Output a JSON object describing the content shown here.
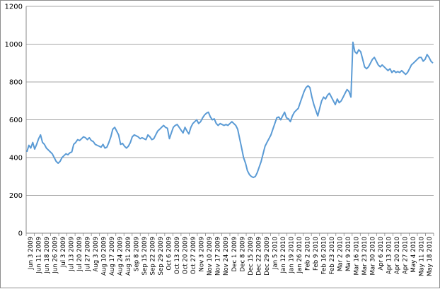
{
  "colors": {
    "line": "#5b9bd5",
    "grid": "#888888",
    "axis": "#888888"
  },
  "chart_data": {
    "type": "line",
    "title": "",
    "xlabel": "",
    "ylabel": "",
    "ylim": [
      0,
      1200
    ],
    "yticks": [
      "0",
      "200",
      "400",
      "600",
      "800",
      "1000",
      "1200"
    ],
    "grid": "horizontal",
    "legend": "none",
    "x_tick_labels": [
      "Jun 3 2009",
      "Jun 11 2009",
      "Jun 18 2009",
      "Jun 26 2009",
      "Jul 3 2009",
      "Jul 13 2009",
      "Jul 20 2009",
      "Jul 27 2009",
      "Aug 3 2009",
      "Aug 10 2009",
      "Aug 17 2009",
      "Aug 24 2009",
      "Aug 31 2009",
      "Sep 8 2009",
      "Sep 15 2009",
      "Sep 22 2009",
      "Sep 29 2009",
      "Oct 6 2009",
      "Oct 13 2009",
      "Oct 20 2009",
      "Oct 27 2009",
      "Nov 3 2009",
      "Nov 10 2009",
      "Nov 17 2009",
      "Nov 24 2009",
      "Dec 1 2009",
      "Dec 8 2009",
      "Dec 15 2009",
      "Dec 22 2009",
      "Dec 29 2009",
      "Jan 5 2010",
      "Jan 12 2010",
      "Jan 19 2010",
      "Jan 26 2010",
      "Feb 2 2010",
      "Feb 9 2010",
      "Feb 16 2010",
      "Feb 23 2010",
      "Mar 2 2010",
      "Mar 9 2010",
      "Mar 16 2010",
      "Mar 23 2010",
      "Mar 30 2010",
      "Apr 6 2010",
      "Apr 13 2010",
      "Apr 20 2010",
      "Apr 27 2010",
      "May 4 2010",
      "May 11 2010",
      "May 18 2010"
    ],
    "series": [
      {
        "values": [
          430,
          465,
          450,
          480,
          445,
          470,
          500,
          520,
          480,
          470,
          450,
          440,
          430,
          420,
          400,
          380,
          370,
          380,
          400,
          410,
          420,
          415,
          425,
          430,
          470,
          480,
          495,
          490,
          500,
          510,
          505,
          495,
          505,
          490,
          485,
          470,
          465,
          460,
          455,
          470,
          450,
          455,
          480,
          510,
          550,
          560,
          540,
          520,
          470,
          475,
          460,
          450,
          460,
          480,
          510,
          520,
          515,
          510,
          500,
          505,
          500,
          495,
          520,
          510,
          495,
          500,
          520,
          540,
          550,
          560,
          570,
          560,
          555,
          500,
          530,
          560,
          570,
          575,
          560,
          545,
          530,
          560,
          540,
          525,
          560,
          580,
          590,
          600,
          580,
          590,
          610,
          625,
          635,
          640,
          615,
          600,
          605,
          580,
          570,
          580,
          575,
          570,
          575,
          570,
          580,
          590,
          580,
          570,
          550,
          500,
          450,
          400,
          370,
          330,
          310,
          300,
          295,
          300,
          320,
          350,
          380,
          420,
          460,
          480,
          500,
          520,
          550,
          580,
          610,
          615,
          600,
          620,
          640,
          610,
          605,
          590,
          620,
          640,
          650,
          660,
          690,
          720,
          750,
          770,
          780,
          770,
          720,
          680,
          650,
          620,
          660,
          700,
          720,
          710,
          730,
          740,
          720,
          700,
          680,
          710,
          690,
          700,
          720,
          740,
          760,
          750,
          720,
          1010,
          960,
          950,
          970,
          960,
          920,
          880,
          870,
          880,
          900,
          920,
          930,
          910,
          890,
          880,
          890,
          880,
          870,
          860,
          870,
          850,
          860,
          850,
          855,
          850,
          860,
          850,
          840,
          850,
          870,
          890,
          900,
          910,
          920,
          930,
          930,
          910,
          920,
          945,
          930,
          910,
          900
        ]
      }
    ]
  }
}
